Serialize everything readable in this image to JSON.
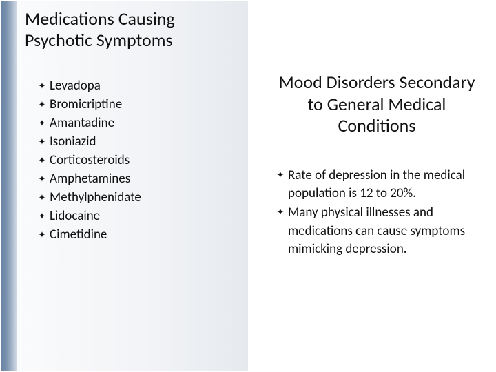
{
  "colors": {
    "background": "#ffffff",
    "text": "#111111",
    "leftbar_gradient": [
      "#6681a1",
      "#7b92ae",
      "#a9b8cb",
      "#d6dde7"
    ],
    "leftpanel_gradient": [
      "#fafbfc",
      "#f1f3f6",
      "#e6e9ee"
    ]
  },
  "typography": {
    "font_family": "Calibri",
    "title_fontsize_pt": 20,
    "body_fontsize_pt": 14
  },
  "layout": {
    "slide_width": 720,
    "slide_height": 540,
    "leftbar_width": 24,
    "leftpanel_width": 335
  },
  "left": {
    "title": "Medications Causing Psychotic Symptoms",
    "bullet_char": "✦",
    "items": [
      "Levadopa",
      "Bromicriptine",
      "Amantadine",
      "Isoniazid",
      "Corticosteroids",
      "Amphetamines",
      "Methylphenidate",
      "Lidocaine",
      "Cimetidine"
    ]
  },
  "right": {
    "title": "Mood Disorders Secondary to General Medical Conditions",
    "bullet_char": "✦",
    "items": [
      "Rate of depression in the medical population is  12 to 20%.",
      "Many physical illnesses and medications can cause symptoms mimicking depression."
    ]
  }
}
